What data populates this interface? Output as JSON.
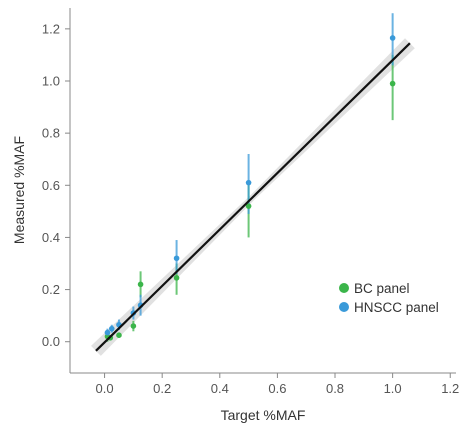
{
  "chart_data": {
    "type": "scatter",
    "title": "",
    "xlabel": "Target %MAF",
    "ylabel": "Measured %MAF",
    "xlim": [
      -0.12,
      1.22
    ],
    "ylim": [
      -0.12,
      1.28
    ],
    "x_ticks": [
      "0.0",
      "0.2",
      "0.4",
      "0.6",
      "0.8",
      "1.0",
      "1.2"
    ],
    "x_tick_values": [
      0.0,
      0.2,
      0.4,
      0.6,
      0.8,
      1.0,
      1.2
    ],
    "y_ticks": [
      "0.0",
      "0.2",
      "0.4",
      "0.6",
      "0.8",
      "1.0",
      "1.2"
    ],
    "y_tick_values": [
      0.0,
      0.2,
      0.4,
      0.6,
      0.8,
      1.0,
      1.2
    ],
    "grid": false,
    "legend_position": "right",
    "series": [
      {
        "name": "BC panel",
        "color": "#3bb54a",
        "points": [
          {
            "x": 0.01,
            "y": 0.02,
            "err_low": 0.0,
            "err_high": 0.04
          },
          {
            "x": 0.02,
            "y": 0.015,
            "err_low": 0.005,
            "err_high": 0.025
          },
          {
            "x": 0.05,
            "y": 0.025,
            "err_low": 0.015,
            "err_high": 0.035
          },
          {
            "x": 0.1,
            "y": 0.06,
            "err_low": 0.04,
            "err_high": 0.08
          },
          {
            "x": 0.125,
            "y": 0.22,
            "err_low": 0.17,
            "err_high": 0.27
          },
          {
            "x": 0.25,
            "y": 0.245,
            "err_low": 0.18,
            "err_high": 0.3
          },
          {
            "x": 0.5,
            "y": 0.52,
            "err_low": 0.4,
            "err_high": 0.61
          },
          {
            "x": 1.0,
            "y": 0.99,
            "err_low": 0.85,
            "err_high": 1.1
          }
        ]
      },
      {
        "name": "HNSCC panel",
        "color": "#3a9ad9",
        "points": [
          {
            "x": 0.01,
            "y": 0.035,
            "err_low": 0.02,
            "err_high": 0.05
          },
          {
            "x": 0.025,
            "y": 0.05,
            "err_low": 0.035,
            "err_high": 0.065
          },
          {
            "x": 0.05,
            "y": 0.065,
            "err_low": 0.045,
            "err_high": 0.085
          },
          {
            "x": 0.1,
            "y": 0.11,
            "err_low": 0.085,
            "err_high": 0.135
          },
          {
            "x": 0.125,
            "y": 0.14,
            "err_low": 0.1,
            "err_high": 0.18
          },
          {
            "x": 0.25,
            "y": 0.32,
            "err_low": 0.26,
            "err_high": 0.39
          },
          {
            "x": 0.5,
            "y": 0.61,
            "err_low": 0.49,
            "err_high": 0.72
          },
          {
            "x": 1.0,
            "y": 1.165,
            "err_low": 1.06,
            "err_high": 1.26
          }
        ]
      }
    ],
    "fit_line": {
      "x": [
        -0.03,
        1.06
      ],
      "y": [
        -0.035,
        1.145
      ],
      "color": "#111111",
      "band_color": "#d9d9d9"
    }
  }
}
